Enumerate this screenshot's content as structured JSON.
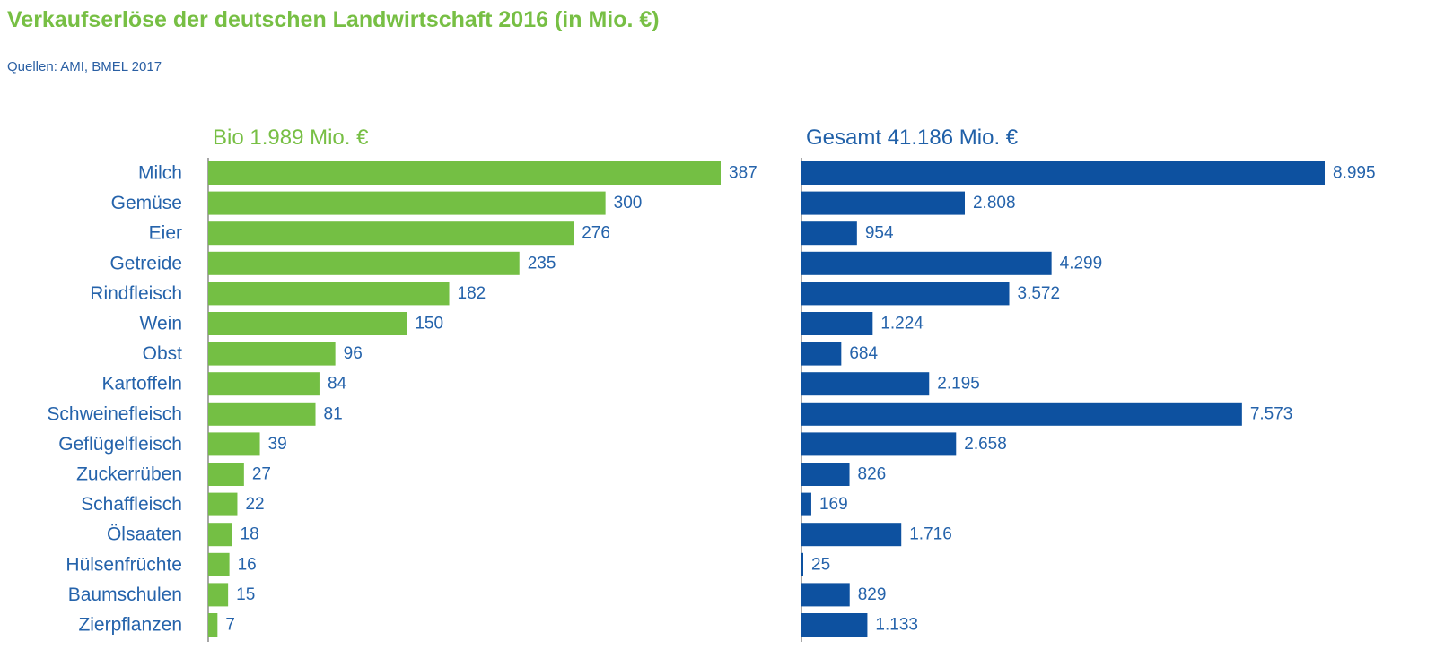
{
  "title": "Verkaufserlöse der deutschen Landwirtschaft 2016 (in Mio. €)",
  "source": "Quellen: AMI, BMEL 2017",
  "colors": {
    "bio": "#74bf44",
    "total": "#0d51a0",
    "text": "#2563ab"
  },
  "chart_data": [
    {
      "type": "bar",
      "orientation": "horizontal",
      "title": "Bio 1.989 Mio. €",
      "categories": [
        "Milch",
        "Gemüse",
        "Eier",
        "Getreide",
        "Rindfleisch",
        "Wein",
        "Obst",
        "Kartoffeln",
        "Schweinefleisch",
        "Geflügelfleisch",
        "Zuckerrüben",
        "Schaffleisch",
        "Ölsaaten",
        "Hülsenfrüchte",
        "Baumschulen",
        "Zierpflanzen"
      ],
      "values": [
        387,
        300,
        276,
        235,
        182,
        150,
        96,
        84,
        81,
        39,
        27,
        22,
        18,
        16,
        15,
        7
      ],
      "labels": [
        "387",
        "300",
        "276",
        "235",
        "182",
        "150",
        "96",
        "84",
        "81",
        "39",
        "27",
        "22",
        "18",
        "16",
        "15",
        "7"
      ],
      "xlim": [
        0,
        387
      ]
    },
    {
      "type": "bar",
      "orientation": "horizontal",
      "title": "Gesamt 41.186 Mio. €",
      "categories": [
        "Milch",
        "Gemüse",
        "Eier",
        "Getreide",
        "Rindfleisch",
        "Wein",
        "Obst",
        "Kartoffeln",
        "Schweinefleisch",
        "Geflügelfleisch",
        "Zuckerrüben",
        "Schaffleisch",
        "Ölsaaten",
        "Hülsenfrüchte",
        "Baumschulen",
        "Zierpflanzen"
      ],
      "values": [
        8995,
        2808,
        954,
        4299,
        3572,
        1224,
        684,
        2195,
        7573,
        2658,
        826,
        169,
        1716,
        25,
        829,
        1133
      ],
      "labels": [
        "8.995",
        "2.808",
        "954",
        "4.299",
        "3.572",
        "1.224",
        "684",
        "2.195",
        "7.573",
        "2.658",
        "826",
        "169",
        "1.716",
        "25",
        "829",
        "1.133"
      ],
      "xlim": [
        0,
        8995
      ]
    }
  ]
}
